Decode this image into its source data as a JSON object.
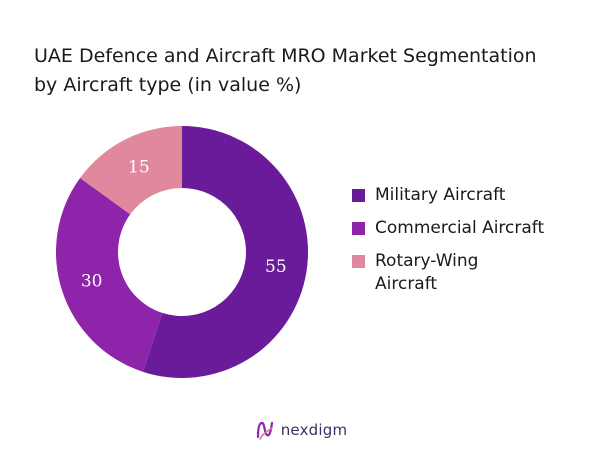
{
  "title": {
    "line1": "UAE Defence and Aircraft MRO Market Segmentation",
    "line2": "by Aircraft type (in value %)"
  },
  "chart_data": {
    "type": "pie",
    "donut": true,
    "categories": [
      "Military Aircraft",
      "Commercial Aircraft",
      "Rotary-Wing Aircraft"
    ],
    "values": [
      55,
      30,
      15
    ],
    "colors": [
      "#6a1b9a",
      "#8e24aa",
      "#e0889e"
    ],
    "data_labels_shown": true,
    "legend_placement": "right"
  },
  "legend": {
    "items": [
      {
        "label": "Military Aircraft",
        "color": "#6a1b9a"
      },
      {
        "label": "Commercial Aircraft",
        "color": "#8e24aa"
      },
      {
        "label": "Rotary-Wing Aircraft",
        "color": "#e0889e"
      }
    ]
  },
  "footer": {
    "brand": "nexdigm",
    "logo_icon": "nexdigm-logo-icon"
  }
}
